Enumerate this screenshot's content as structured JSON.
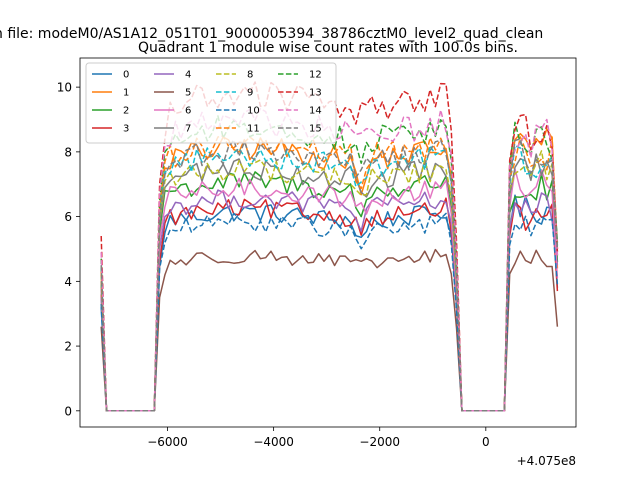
{
  "chart_data": {
    "type": "line",
    "suptitle": "n file: modeM0/AS1A12_051T01_9000005394_38786cztM0_level2_quad_clean",
    "title": "Quadrant 1 module wise count rates with 100.0s bins.",
    "xlabel": "",
    "ylabel": "",
    "offset_text": "+4.075e8",
    "xlim": [
      -7650,
      1700
    ],
    "ylim": [
      -0.5,
      10.9
    ],
    "xticks": [
      -6000,
      -4000,
      -2000,
      0
    ],
    "xtick_labels": [
      "−6000",
      "−4000",
      "−2000",
      "0"
    ],
    "yticks": [
      0,
      2,
      4,
      6,
      8,
      10
    ],
    "ytick_labels": [
      "0",
      "2",
      "4",
      "6",
      "8",
      "10"
    ],
    "grid": false,
    "legend": {
      "placement": "top-left",
      "columns": 4
    },
    "x_start": -7250,
    "bin_width": 100,
    "segments": [
      {
        "start_index": 0,
        "end_index": 67
      },
      {
        "start_index": 69,
        "end_index": 86
      }
    ],
    "series": [
      {
        "name": "0",
        "color": "#1f77b4",
        "style": "solid",
        "level": 5.9,
        "first": 3.2,
        "edges": [
          4.5,
          5.5
        ],
        "seg2": 6.2,
        "tail": 3.8,
        "dip": 0.6
      },
      {
        "name": "1",
        "color": "#ff7f0e",
        "style": "solid",
        "level": 7.8,
        "first": 4.0,
        "edges": [
          6.0,
          7.5
        ],
        "seg2": 8.2,
        "tail": 4.4,
        "dip": 1.1
      },
      {
        "name": "2",
        "color": "#2ca02c",
        "style": "solid",
        "level": 6.8,
        "first": 3.9,
        "edges": [
          5.5,
          6.8
        ],
        "seg2": 6.8,
        "tail": 4.6,
        "dip": 0.7
      },
      {
        "name": "3",
        "color": "#d62728",
        "style": "solid",
        "level": 6.0,
        "first": 3.6,
        "edges": [
          4.6,
          5.8
        ],
        "seg2": 6.0,
        "tail": 3.7,
        "dip": 0.4
      },
      {
        "name": "4",
        "color": "#9467bd",
        "style": "solid",
        "level": 6.3,
        "first": 3.5,
        "edges": [
          5.0,
          6.0
        ],
        "seg2": 6.3,
        "tail": 4.5,
        "dip": 0.5
      },
      {
        "name": "5",
        "color": "#8c564b",
        "style": "solid",
        "level": 4.6,
        "first": 2.6,
        "edges": [
          3.5,
          4.2
        ],
        "seg2": 4.7,
        "tail": 2.6,
        "dip": 0.2
      },
      {
        "name": "6",
        "color": "#e377c2",
        "style": "solid",
        "level": 6.6,
        "first": 3.8,
        "edges": [
          5.3,
          6.3
        ],
        "seg2": 7.0,
        "tail": 4.1,
        "dip": 0.4
      },
      {
        "name": "7",
        "color": "#7f7f7f",
        "style": "solid",
        "level": 7.2,
        "first": 4.0,
        "edges": [
          5.8,
          6.9
        ],
        "seg2": 7.4,
        "tail": 4.8,
        "dip": 0.6
      },
      {
        "name": "8",
        "color": "#bcbd22",
        "style": "dashed",
        "level": 7.2,
        "first": 4.2,
        "edges": [
          5.9,
          7.1
        ],
        "seg2": 7.6,
        "tail": 5.0,
        "dip": 0.6
      },
      {
        "name": "9",
        "color": "#17becf",
        "style": "dashed",
        "level": 7.6,
        "first": 4.4,
        "edges": [
          6.2,
          7.4
        ],
        "seg2": 7.7,
        "tail": 5.1,
        "dip": 0.5
      },
      {
        "name": "10",
        "color": "#1f77b4",
        "style": "dashed",
        "level": 5.6,
        "first": 3.3,
        "edges": [
          4.4,
          5.2
        ],
        "seg2": 5.7,
        "tail": 3.9,
        "dip": 0.5
      },
      {
        "name": "11",
        "color": "#ff7f0e",
        "style": "dashed",
        "level": 7.9,
        "first": 4.3,
        "edges": [
          6.3,
          7.7
        ],
        "seg2": 8.0,
        "tail": 5.0,
        "dip": 0.8
      },
      {
        "name": "12",
        "color": "#2ca02c",
        "style": "dashed",
        "level": 8.4,
        "first": 4.7,
        "edges": [
          6.5,
          8.0
        ],
        "seg2": 8.4,
        "tail": 5.2,
        "dip": 0.4
      },
      {
        "name": "13",
        "color": "#d62728",
        "style": "dashed",
        "level": 9.4,
        "first": 5.4,
        "edges": [
          7.0,
          8.4
        ],
        "seg2": 8.6,
        "tail": 4.9,
        "dip": 0.3
      },
      {
        "name": "14",
        "color": "#e377c2",
        "style": "dashed",
        "level": 8.6,
        "first": 4.9,
        "edges": [
          6.7,
          8.2
        ],
        "seg2": 8.4,
        "tail": 4.8,
        "dip": 0.3
      },
      {
        "name": "15",
        "color": "#7f7f7f",
        "style": "dashed",
        "level": 7.7,
        "first": 4.5,
        "edges": [
          6.0,
          7.3
        ],
        "seg2": 7.9,
        "tail": 5.0,
        "dip": 0.4
      }
    ]
  }
}
